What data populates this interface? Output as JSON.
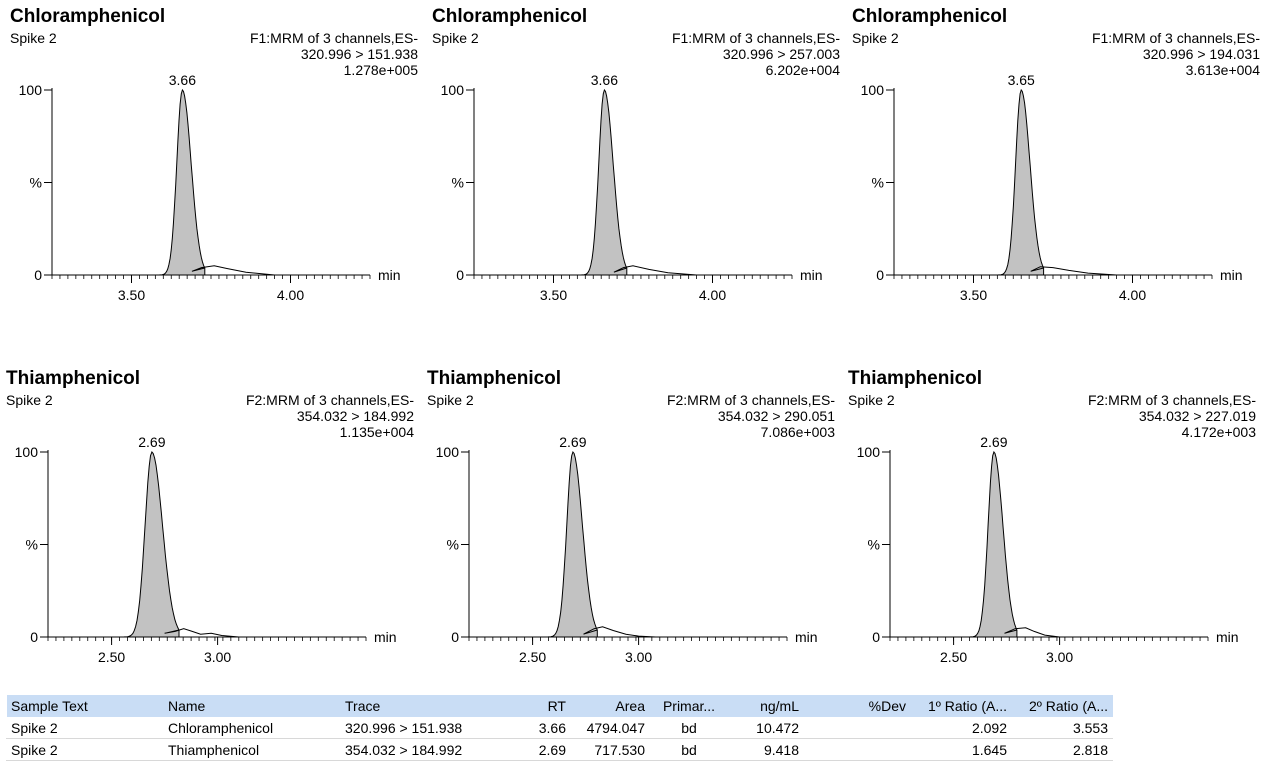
{
  "chart_data": [
    {
      "type": "line",
      "title": "Chloramphenicol",
      "subtitle": "Spike 2",
      "function": "F1:MRM of 3 channels,ES-",
      "transition": "320.996 > 151.938",
      "intensity": "1.278e+005",
      "peak_label": "3.66",
      "peak_rt": 3.66,
      "peak_width": 0.022,
      "xlim": [
        3.25,
        4.25
      ],
      "xticks": [
        3.5,
        4.0
      ],
      "xtick_labels": [
        "3.50",
        "4.00"
      ],
      "ytick_labels": [
        "100",
        "%",
        "0"
      ],
      "xlabel": "min",
      "tail": [
        [
          3.69,
          0.02
        ],
        [
          3.72,
          0.04
        ],
        [
          3.76,
          0.05
        ],
        [
          3.8,
          0.035
        ],
        [
          3.86,
          0.015
        ],
        [
          3.95,
          0.0
        ]
      ]
    },
    {
      "type": "line",
      "title": "Chloramphenicol",
      "subtitle": "Spike 2",
      "function": "F1:MRM of 3 channels,ES-",
      "transition": "320.996 > 257.003",
      "intensity": "6.202e+004",
      "peak_label": "3.66",
      "peak_rt": 3.66,
      "peak_width": 0.022,
      "xlim": [
        3.25,
        4.25
      ],
      "xticks": [
        3.5,
        4.0
      ],
      "xtick_labels": [
        "3.50",
        "4.00"
      ],
      "ytick_labels": [
        "100",
        "%",
        "0"
      ],
      "xlabel": "min",
      "tail": [
        [
          3.69,
          0.015
        ],
        [
          3.72,
          0.04
        ],
        [
          3.75,
          0.05
        ],
        [
          3.8,
          0.03
        ],
        [
          3.86,
          0.012
        ],
        [
          3.95,
          0.0
        ]
      ]
    },
    {
      "type": "line",
      "title": "Chloramphenicol",
      "subtitle": "Spike 2",
      "function": "F1:MRM of 3 channels,ES-",
      "transition": "320.996 > 194.031",
      "intensity": "3.613e+004",
      "peak_label": "3.65",
      "peak_rt": 3.65,
      "peak_width": 0.022,
      "xlim": [
        3.25,
        4.25
      ],
      "xticks": [
        3.5,
        4.0
      ],
      "xtick_labels": [
        "3.50",
        "4.00"
      ],
      "ytick_labels": [
        "100",
        "%",
        "0"
      ],
      "xlabel": "min",
      "tail": [
        [
          3.68,
          0.02
        ],
        [
          3.71,
          0.045
        ],
        [
          3.75,
          0.04
        ],
        [
          3.8,
          0.025
        ],
        [
          3.86,
          0.01
        ],
        [
          3.95,
          0.0
        ]
      ]
    },
    {
      "type": "line",
      "title": "Thiamphenicol",
      "subtitle": "Spike 2",
      "function": "F2:MRM of 3 channels,ES-",
      "transition": "354.032 > 184.992",
      "intensity": "1.135e+004",
      "peak_label": "2.69",
      "peak_rt": 2.69,
      "peak_width": 0.04,
      "xlim": [
        2.2,
        3.7
      ],
      "xticks": [
        2.5,
        3.0
      ],
      "xtick_labels": [
        "2.50",
        "3.00"
      ],
      "ytick_labels": [
        "100",
        "%",
        "0"
      ],
      "xlabel": "min",
      "tail": [
        [
          2.75,
          0.02
        ],
        [
          2.8,
          0.03
        ],
        [
          2.84,
          0.045
        ],
        [
          2.88,
          0.03
        ],
        [
          2.92,
          0.015
        ],
        [
          2.97,
          0.02
        ],
        [
          3.02,
          0.008
        ],
        [
          3.1,
          0.0
        ]
      ]
    },
    {
      "type": "line",
      "title": "Thiamphenicol",
      "subtitle": "Spike 2",
      "function": "F2:MRM of 3 channels,ES-",
      "transition": "354.032 > 290.051",
      "intensity": "7.086e+003",
      "peak_label": "2.69",
      "peak_rt": 2.69,
      "peak_width": 0.036,
      "xlim": [
        2.2,
        3.7
      ],
      "xticks": [
        2.5,
        3.0
      ],
      "xtick_labels": [
        "2.50",
        "3.00"
      ],
      "ytick_labels": [
        "100",
        "%",
        "0"
      ],
      "xlabel": "min",
      "tail": [
        [
          2.74,
          0.015
        ],
        [
          2.79,
          0.045
        ],
        [
          2.83,
          0.055
        ],
        [
          2.88,
          0.035
        ],
        [
          2.94,
          0.015
        ],
        [
          3.0,
          0.005
        ],
        [
          3.08,
          0.0
        ]
      ]
    },
    {
      "type": "line",
      "title": "Thiamphenicol",
      "subtitle": "Spike 2",
      "function": "F2:MRM of 3 channels,ES-",
      "transition": "354.032 > 227.019",
      "intensity": "4.172e+003",
      "peak_label": "2.69",
      "peak_rt": 2.69,
      "peak_width": 0.034,
      "xlim": [
        2.2,
        3.7
      ],
      "xticks": [
        2.5,
        3.0
      ],
      "xtick_labels": [
        "2.50",
        "3.00"
      ],
      "ytick_labels": [
        "100",
        "%",
        "0"
      ],
      "xlabel": "min",
      "tail": [
        [
          2.74,
          0.02
        ],
        [
          2.79,
          0.045
        ],
        [
          2.84,
          0.05
        ],
        [
          2.88,
          0.03
        ],
        [
          2.93,
          0.01
        ],
        [
          3.0,
          0.0
        ]
      ]
    }
  ],
  "table": {
    "headers": [
      "Sample Text",
      "Name",
      "Trace",
      "RT",
      "Area",
      "Primar...",
      "ng/mL",
      "%Dev",
      "1º Ratio (A...",
      "2º Ratio (A..."
    ],
    "rows": [
      [
        "Spike 2",
        "Chloramphenicol",
        "320.996 > 151.938",
        "3.66",
        "4794.047",
        "bd",
        "10.472",
        "",
        "2.092",
        "3.553"
      ],
      [
        "Spike 2",
        "Thiamphenicol",
        "354.032 > 184.992",
        "2.69",
        "717.530",
        "bd",
        "9.418",
        "",
        "1.645",
        "2.818"
      ]
    ]
  }
}
